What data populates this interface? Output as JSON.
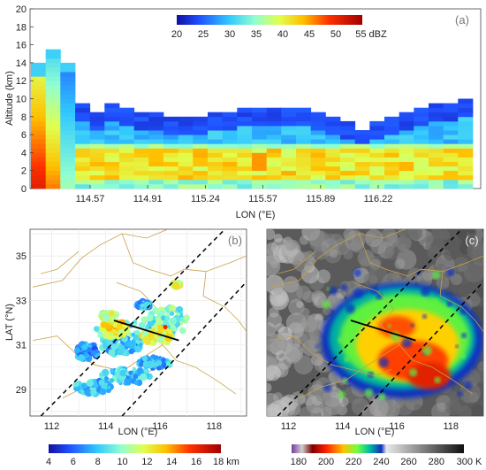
{
  "panels": {
    "a": {
      "label": "(a)",
      "chart_data": {
        "type": "heatmap",
        "xlabel": "LON (°E)",
        "ylabel": "Altitude (km)",
        "ylim": [
          0,
          20
        ],
        "y_ticks": [
          0,
          2,
          4,
          6,
          8,
          10,
          12,
          14,
          16,
          18,
          20
        ],
        "x_ticks": [
          "114.57",
          "114.91",
          "115.24",
          "115.57",
          "115.89",
          "116.22"
        ],
        "colorbar": {
          "ticks": [
            "20",
            "25",
            "30",
            "35",
            "40",
            "45",
            "50",
            "55 dBZ"
          ],
          "range": [
            20,
            55
          ],
          "placement": "top-center"
        },
        "echo_top_km": [
          13.8,
          15.6,
          14.0,
          9.4,
          8.6,
          9.5,
          9.0,
          8.6,
          8.4,
          8.2,
          8.0,
          8.1,
          8.3,
          8.5,
          8.8,
          8.9,
          9.0,
          9.0,
          8.8,
          8.6,
          8.2,
          7.6,
          6.5,
          7.5,
          8.2,
          8.6,
          9.0,
          9.5,
          9.7,
          9.8
        ],
        "description_series": "echo top height along track"
      }
    },
    "b": {
      "label": "(b)",
      "chart_data": {
        "type": "heatmap",
        "xlabel": "LON (°E)",
        "ylabel": "LAT (°N)",
        "x_ticks": [
          "112",
          "114",
          "116",
          "118"
        ],
        "y_ticks": [
          "29",
          "31",
          "33",
          "35"
        ],
        "xlim": [
          111.2,
          119.2
        ],
        "ylim": [
          27.8,
          36.2
        ],
        "colorbar": {
          "ticks": [
            "4",
            "6",
            "8",
            "10",
            "12",
            "14",
            "16",
            "18 km"
          ],
          "range": [
            4,
            18
          ]
        },
        "transect": {
          "start": [
            114.3,
            32.1
          ],
          "end": [
            116.7,
            31.2
          ]
        }
      }
    },
    "c": {
      "label": "(c)",
      "chart_data": {
        "type": "heatmap",
        "xlabel": "LON (°E)",
        "x_ticks": [
          "112",
          "114",
          "116",
          "118"
        ],
        "y_ticks": [
          "29",
          "31",
          "33",
          "35"
        ],
        "xlim": [
          111.2,
          119.2
        ],
        "ylim": [
          27.8,
          36.2
        ],
        "colorbar": {
          "ticks": [
            "180",
            "200",
            "220",
            "240",
            "260",
            "280",
            "300 K"
          ],
          "range": [
            175,
            300
          ]
        },
        "transect": {
          "start": [
            114.3,
            32.1
          ],
          "end": [
            116.7,
            31.2
          ]
        }
      }
    }
  }
}
